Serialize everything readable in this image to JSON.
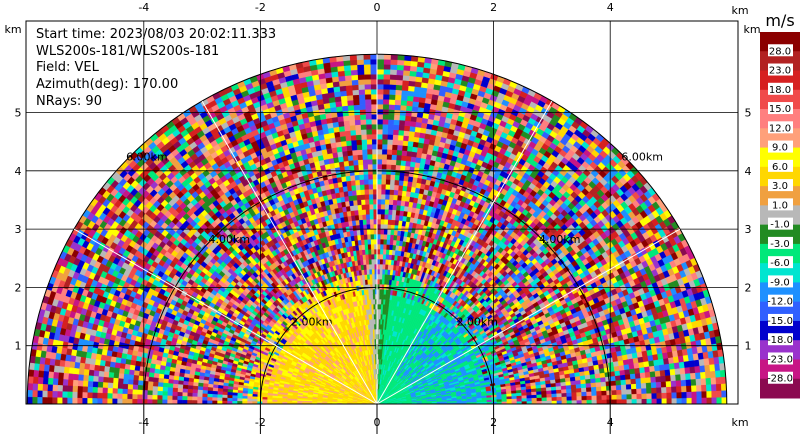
{
  "info": {
    "start_time": "Start time: 2023/08/03 20:02:11.333",
    "instrument": "WLS200s-181/WLS200s-181",
    "field": "Field: VEL",
    "azimuth": "Azimuth(deg): 170.00",
    "nrays": "NRays: 90"
  },
  "axis_unit_label": "km",
  "colorbar": {
    "unit": "m/s",
    "labels": [
      "28.0",
      "23.0",
      "18.0",
      "15.0",
      "12.0",
      "9.0",
      "6.0",
      "3.0",
      "1.0",
      "-1.0",
      "-3.0",
      "-6.0",
      "-9.0",
      "-12.0",
      "-15.0",
      "-18.0",
      "-23.0",
      "-28.0"
    ],
    "colors": [
      "#8b0000",
      "#b22222",
      "#d62020",
      "#f04a4a",
      "#ff7f7f",
      "#ffa07a",
      "#ffff00",
      "#ffd700",
      "#f0a040",
      "#b8b8b8",
      "#228b22",
      "#00e87a",
      "#00e5d0",
      "#1e90ff",
      "#3060ff",
      "#0000cd",
      "#9932cc",
      "#c71585",
      "#8b0a50"
    ]
  },
  "chart_data": {
    "type": "heatmap",
    "projection": "PPI sector scan, upper half-plane",
    "field": "VEL",
    "units": "m/s",
    "x_ticks": [
      -4,
      -2,
      0,
      2,
      4
    ],
    "y_ticks": [
      1,
      2,
      3,
      4,
      5
    ],
    "x_unit": "km",
    "y_unit": "km",
    "xlim": [
      -5.9,
      6.0
    ],
    "ylim": [
      0,
      6.0
    ],
    "range_rings_km": [
      2.0,
      4.0,
      6.0
    ],
    "ring_labels": [
      "2.00km",
      "4.00km",
      "6.00km"
    ],
    "max_range_km": 6.0,
    "color_levels": [
      -28.0,
      -23.0,
      -18.0,
      -15.0,
      -12.0,
      -9.0,
      -6.0,
      -3.0,
      -1.0,
      1.0,
      3.0,
      6.0,
      9.0,
      12.0,
      15.0,
      18.0,
      23.0,
      28.0
    ],
    "grid": true
  }
}
